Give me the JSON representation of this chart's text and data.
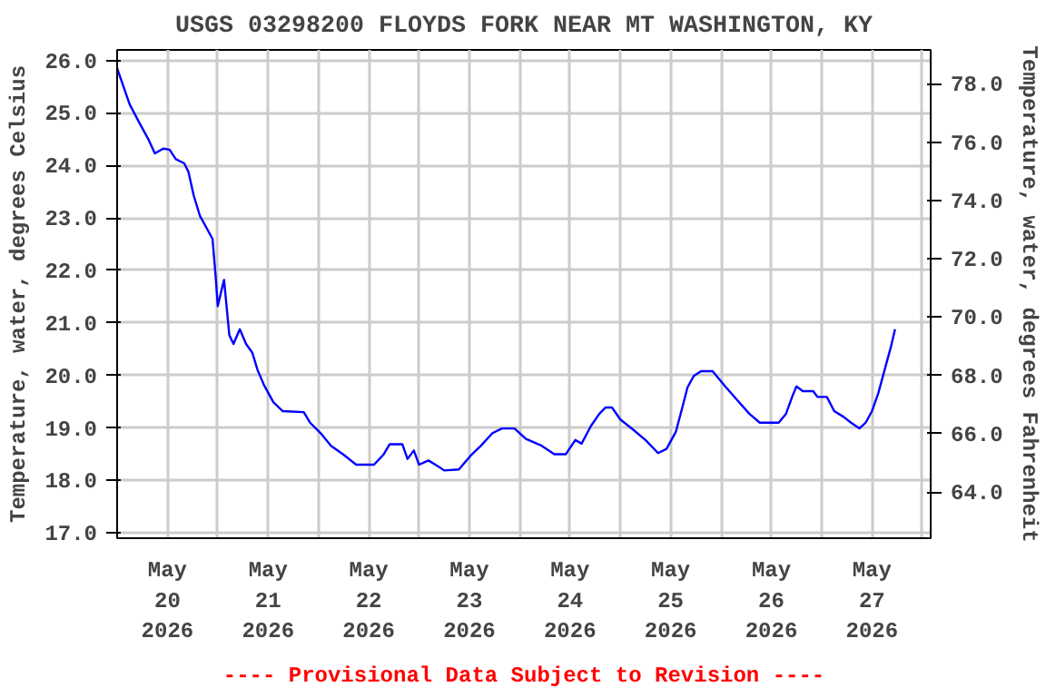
{
  "chart_data": {
    "type": "line",
    "title": "USGS 03298200 FLOYDS FORK NEAR MT WASHINGTON, KY",
    "ylabel": "Temperature, water, degrees Celsius",
    "y2label": "Temperature, water, degrees Fahrenheit",
    "annotations": [
      "---- Provisional Data Subject to Revision ----"
    ],
    "x": [
      "2026-05-20T00:00",
      "2026-05-20T03:00",
      "2026-05-20T05:15",
      "2026-05-20T07:30",
      "2026-05-20T09:00",
      "2026-05-20T11:00",
      "2026-05-20T12:30",
      "2026-05-20T14:00",
      "2026-05-20T16:00",
      "2026-05-20T17:00",
      "2026-05-20T18:15",
      "2026-05-20T19:45",
      "2026-05-20T21:15",
      "2026-05-20T22:45",
      "2026-05-20T23:30",
      "2026-05-21T00:00",
      "2026-05-21T01:00",
      "2026-05-21T01:30",
      "2026-05-21T02:45",
      "2026-05-21T03:45",
      "2026-05-21T05:15",
      "2026-05-21T06:45",
      "2026-05-21T08:15",
      "2026-05-21T09:30",
      "2026-05-21T11:00",
      "2026-05-21T13:15",
      "2026-05-21T15:30",
      "2026-05-21T20:30",
      "2026-05-21T22:00",
      "2026-05-22T00:45",
      "2026-05-22T03:00",
      "2026-05-22T06:00",
      "2026-05-22T09:00",
      "2026-05-22T13:15",
      "2026-05-22T15:30",
      "2026-05-22T17:00",
      "2026-05-22T20:00",
      "2026-05-22T21:15",
      "2026-05-22T22:45",
      "2026-05-23T00:00",
      "2026-05-23T02:15",
      "2026-05-23T04:30",
      "2026-05-23T06:00",
      "2026-05-23T09:30",
      "2026-05-23T12:30",
      "2026-05-23T14:45",
      "2026-05-23T17:30",
      "2026-05-23T19:45",
      "2026-05-23T22:45",
      "2026-05-24T01:30",
      "2026-05-24T05:15",
      "2026-05-24T08:15",
      "2026-05-24T11:00",
      "2026-05-24T13:15",
      "2026-05-24T14:45",
      "2026-05-24T17:00",
      "2026-05-24T19:00",
      "2026-05-24T20:30",
      "2026-05-24T22:00",
      "2026-05-25T00:00",
      "2026-05-25T03:00",
      "2026-05-25T06:00",
      "2026-05-25T09:00",
      "2026-05-25T11:00",
      "2026-05-25T13:15",
      "2026-05-25T14:45",
      "2026-05-25T16:00",
      "2026-05-25T17:30",
      "2026-05-25T19:15",
      "2026-05-25T22:00",
      "2026-05-26T01:00",
      "2026-05-26T03:45",
      "2026-05-26T06:45",
      "2026-05-26T09:15",
      "2026-05-26T13:45",
      "2026-05-26T15:30",
      "2026-05-26T17:00",
      "2026-05-26T18:00",
      "2026-05-26T19:30",
      "2026-05-26T22:00",
      "2026-05-26T23:00",
      "2026-05-27T01:15",
      "2026-05-27T03:00",
      "2026-05-27T05:15",
      "2026-05-27T07:00",
      "2026-05-27T09:00",
      "2026-05-27T10:30",
      "2026-05-27T12:00",
      "2026-05-27T13:30",
      "2026-05-27T15:00",
      "2026-05-27T16:30",
      "2026-05-27T17:30"
    ],
    "series": [
      {
        "color": "#0000ff",
        "values": [
          25.85,
          25.16,
          24.82,
          24.49,
          24.23,
          24.32,
          24.3,
          24.12,
          24.04,
          23.88,
          23.43,
          23.04,
          22.82,
          22.6,
          21.88,
          21.32,
          21.66,
          21.82,
          20.77,
          20.6,
          20.88,
          20.6,
          20.43,
          20.1,
          19.82,
          19.49,
          19.32,
          19.3,
          19.1,
          18.88,
          18.66,
          18.49,
          18.3,
          18.3,
          18.49,
          18.69,
          18.69,
          18.41,
          18.57,
          18.3,
          18.38,
          18.27,
          18.19,
          18.21,
          18.49,
          18.66,
          18.9,
          18.99,
          18.99,
          18.79,
          18.66,
          18.5,
          18.5,
          18.77,
          18.7,
          19.04,
          19.27,
          19.39,
          19.39,
          19.16,
          18.97,
          18.77,
          18.52,
          18.6,
          18.93,
          19.38,
          19.77,
          19.99,
          20.08,
          20.08,
          19.79,
          19.54,
          19.27,
          19.1,
          19.1,
          19.27,
          19.6,
          19.79,
          19.7,
          19.7,
          19.59,
          19.59,
          19.32,
          19.21,
          19.1,
          18.99,
          19.1,
          19.32,
          19.66,
          20.1,
          20.54,
          20.88
        ]
      }
    ],
    "xlim": [
      "2026-05-20T00:00",
      "2026-05-28T02:00"
    ],
    "xticks": [
      {
        "value": "2026-05-20T00:00",
        "label": null
      },
      {
        "value": "2026-05-20T12:00",
        "label": "May\n20\n2026"
      },
      {
        "value": "2026-05-21T00:00",
        "label": null
      },
      {
        "value": "2026-05-21T12:00",
        "label": "May\n21\n2026"
      },
      {
        "value": "2026-05-22T00:00",
        "label": null
      },
      {
        "value": "2026-05-22T12:00",
        "label": "May\n22\n2026"
      },
      {
        "value": "2026-05-23T00:00",
        "label": null
      },
      {
        "value": "2026-05-23T12:00",
        "label": "May\n23\n2026"
      },
      {
        "value": "2026-05-24T00:00",
        "label": null
      },
      {
        "value": "2026-05-24T12:00",
        "label": "May\n24\n2026"
      },
      {
        "value": "2026-05-25T00:00",
        "label": null
      },
      {
        "value": "2026-05-25T12:00",
        "label": "May\n25\n2026"
      },
      {
        "value": "2026-05-26T00:00",
        "label": null
      },
      {
        "value": "2026-05-26T12:00",
        "label": "May\n26\n2026"
      },
      {
        "value": "2026-05-27T00:00",
        "label": null
      },
      {
        "value": "2026-05-27T12:00",
        "label": "May\n27\n2026"
      },
      {
        "value": "2026-05-28T00:00",
        "label": null
      }
    ],
    "ylim": [
      16.9,
      26.2
    ],
    "yticks": [
      {
        "value": 17,
        "label": "17.0"
      },
      {
        "value": 18,
        "label": "18.0"
      },
      {
        "value": 19,
        "label": "19.0"
      },
      {
        "value": 20,
        "label": "20.0"
      },
      {
        "value": 21,
        "label": "21.0"
      },
      {
        "value": 22,
        "label": "22.0"
      },
      {
        "value": 23,
        "label": "23.0"
      },
      {
        "value": 24,
        "label": "24.0"
      },
      {
        "value": 25,
        "label": "25.0"
      },
      {
        "value": 26,
        "label": "26.0"
      }
    ],
    "y2lim": [
      62.42,
      79.16
    ],
    "y2ticks": [
      {
        "value": 64,
        "label": "64.0"
      },
      {
        "value": 66,
        "label": "66.0"
      },
      {
        "value": 68,
        "label": "68.0"
      },
      {
        "value": 70,
        "label": "70.0"
      },
      {
        "value": 72,
        "label": "72.0"
      },
      {
        "value": 74,
        "label": "74.0"
      },
      {
        "value": 76,
        "label": "76.0"
      },
      {
        "value": 78,
        "label": "78.0"
      }
    ],
    "grid": true
  }
}
